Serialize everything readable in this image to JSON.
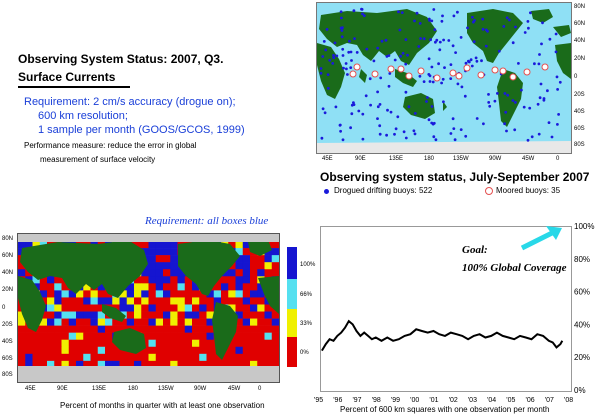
{
  "header": {
    "title": "Observing System Status:  2007, Q3.",
    "subtitle": "Surface Currents",
    "requirement_lines": [
      "Requirement: 2 cm/s accuracy (drogue on);",
      "600 km resolution;",
      "1 sample per month (GOOS/GCOS, 1999)"
    ],
    "performance_lines": [
      "Performance measure: reduce the error in global",
      "measurement of surface velocity"
    ]
  },
  "colors": {
    "ocean_map": "#8fe0f5",
    "land": "#1a6b1a",
    "drifter": "#1a1adb",
    "moored": "#e45050",
    "box_blue": "#1515d0",
    "box_cyan": "#55e0f0",
    "box_yellow": "#f0f000",
    "box_red": "#e00000",
    "ice": "#c8c8c8",
    "arrow": "#28d8e8"
  },
  "chart_data": [
    {
      "type": "scatter",
      "title": "Observing system status, July-September 2007",
      "lat_ticks": [
        "80N",
        "60N",
        "40N",
        "20N",
        "0",
        "20S",
        "40S",
        "60S",
        "80S"
      ],
      "lon_ticks": [
        "45E",
        "90E",
        "135E",
        "180",
        "135W",
        "90W",
        "45W",
        "0"
      ],
      "legend": [
        {
          "name": "Drogued drifting buoys: 522",
          "marker": "filled-dot",
          "color": "#1a1adb"
        },
        {
          "name": "Moored buoys: 35",
          "marker": "open-circle",
          "color": "#e45050"
        }
      ]
    },
    {
      "type": "heatmap",
      "annotation": "Requirement: all boxes blue",
      "xlabel": "Percent of months in quarter with at least one observation",
      "lat_ticks": [
        "80N",
        "60N",
        "40N",
        "20N",
        "0",
        "20S",
        "40S",
        "60S",
        "80S"
      ],
      "lon_ticks": [
        "45E",
        "90E",
        "135E",
        "180",
        "135W",
        "90W",
        "45W",
        "0"
      ],
      "colorbar": [
        {
          "label": "100%",
          "color": "#1515d0"
        },
        {
          "label": "66%",
          "color": "#55e0f0"
        },
        {
          "label": "33%",
          "color": "#f0f000"
        },
        {
          "label": "0%",
          "color": "#e00000"
        }
      ]
    },
    {
      "type": "line",
      "annotations": [
        "Goal:",
        "100% Global Coverage"
      ],
      "xlabel": "Percent of 600 km squares with one observation per month",
      "x_ticks": [
        "'95",
        "'96",
        "'97",
        "'98",
        "'99",
        "'00",
        "'01",
        "'02",
        "'03",
        "'04",
        "'05",
        "'06",
        "'07",
        "'08"
      ],
      "y_ticks": [
        "0%",
        "20%",
        "40%",
        "60%",
        "80%",
        "100%"
      ],
      "xlim": [
        1995,
        2008
      ],
      "ylim": [
        0,
        100
      ],
      "series": [
        {
          "values": [
            [
              1995.1,
              24
            ],
            [
              1995.3,
              28
            ],
            [
              1995.5,
              31
            ],
            [
              1995.7,
              30
            ],
            [
              1995.9,
              33
            ],
            [
              1996.1,
              35
            ],
            [
              1996.3,
              38
            ],
            [
              1996.5,
              42
            ],
            [
              1996.7,
              40
            ],
            [
              1996.9,
              36
            ],
            [
              1997.1,
              33
            ],
            [
              1997.3,
              35
            ],
            [
              1997.5,
              33
            ],
            [
              1997.7,
              31
            ],
            [
              1997.9,
              32
            ],
            [
              1998.2,
              30
            ],
            [
              1998.5,
              32
            ],
            [
              1998.8,
              30
            ],
            [
              1999.1,
              31
            ],
            [
              1999.4,
              33
            ],
            [
              1999.7,
              34
            ],
            [
              2000.0,
              37
            ],
            [
              2000.3,
              36
            ],
            [
              2000.6,
              35
            ],
            [
              2000.9,
              36
            ],
            [
              2001.2,
              34
            ],
            [
              2001.5,
              33
            ],
            [
              2001.8,
              35
            ],
            [
              2002.1,
              34
            ],
            [
              2002.4,
              33
            ],
            [
              2002.7,
              31
            ],
            [
              2003.0,
              33
            ],
            [
              2003.3,
              34
            ],
            [
              2003.6,
              32
            ],
            [
              2003.9,
              33
            ],
            [
              2004.2,
              35
            ],
            [
              2004.5,
              33
            ],
            [
              2004.8,
              32
            ],
            [
              2005.1,
              31
            ],
            [
              2005.4,
              33
            ],
            [
              2005.7,
              32
            ],
            [
              2006.0,
              31
            ],
            [
              2006.3,
              34
            ],
            [
              2006.6,
              33
            ],
            [
              2006.9,
              30
            ],
            [
              2007.1,
              29
            ],
            [
              2007.3,
              26
            ],
            [
              2007.5,
              28
            ],
            [
              2007.6,
              30
            ]
          ]
        }
      ]
    }
  ]
}
